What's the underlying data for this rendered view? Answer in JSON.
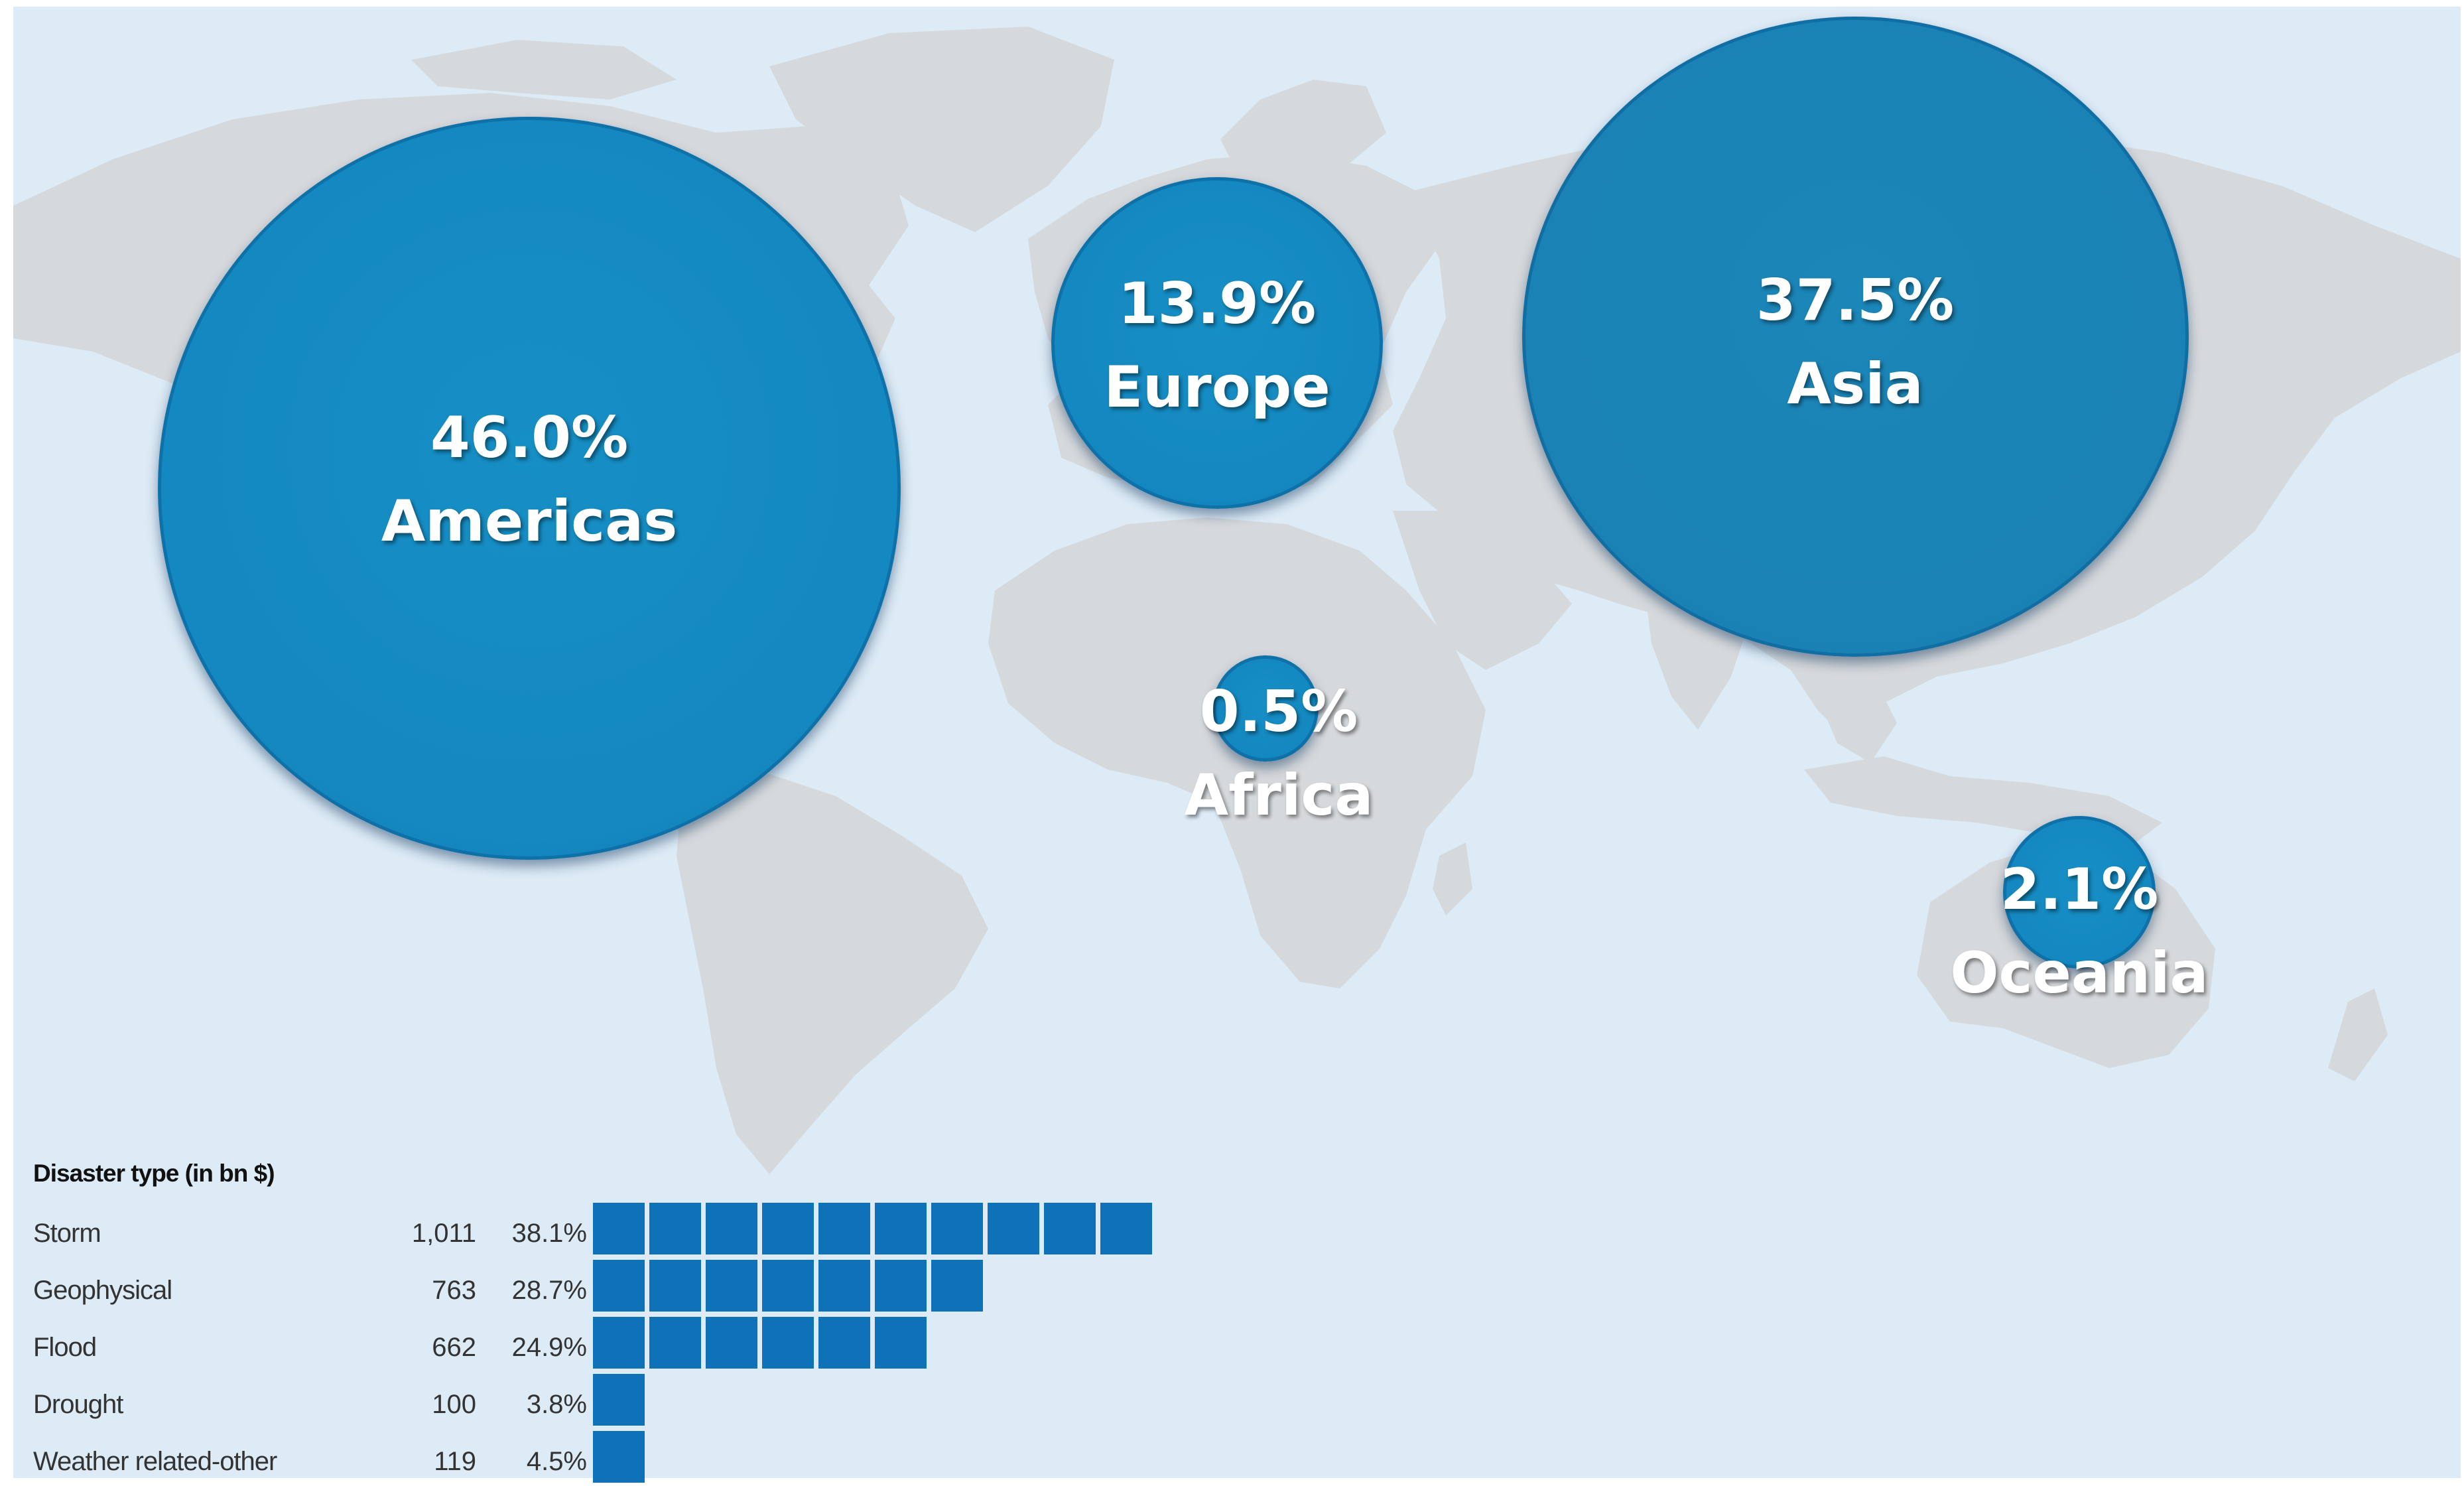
{
  "regions": [
    {
      "name": "Americas",
      "percent": "46.0%",
      "share": 46.0
    },
    {
      "name": "Europe",
      "percent": "13.9%",
      "share": 13.9
    },
    {
      "name": "Asia",
      "percent": "37.5%",
      "share": 37.5
    },
    {
      "name": "Africa",
      "percent": "0.5%",
      "share": 0.5
    },
    {
      "name": "Oceania",
      "percent": "2.1%",
      "share": 2.1
    }
  ],
  "legend": {
    "title": "Disaster type (in bn $)",
    "rows": [
      {
        "label": "Storm",
        "value": "1,011",
        "percent": "38.1%",
        "squares": 10
      },
      {
        "label": "Geophysical",
        "value": "763",
        "percent": "28.7%",
        "squares": 7
      },
      {
        "label": "Flood",
        "value": "662",
        "percent": "24.9%",
        "squares": 6
      },
      {
        "label": "Drought",
        "value": "100",
        "percent": "3.8%",
        "squares": 1
      },
      {
        "label": "Weather related-other",
        "value": "119",
        "percent": "4.5%",
        "squares": 1
      }
    ]
  },
  "colors": {
    "ocean": "#ddebf6",
    "land": "#d6d9dc",
    "bubble": "#1387bd",
    "square": "#0f72b9",
    "label_text": "#ffffff"
  }
}
